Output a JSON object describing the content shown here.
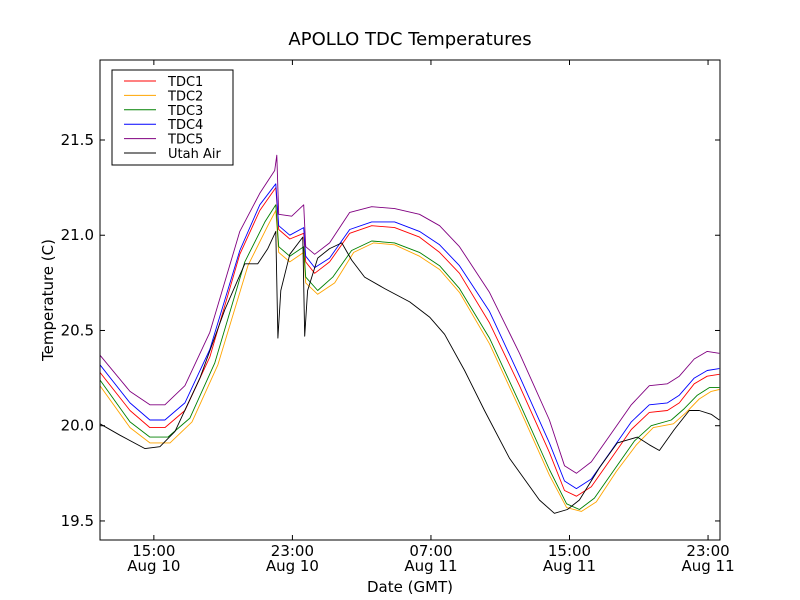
{
  "chart_data": {
    "type": "line",
    "title": "APOLLO TDC Temperatures",
    "xlabel": "Date (GMT)",
    "ylabel": "Temperature (C)",
    "x_units": "hours since 12:00 Aug 10 (GMT)",
    "xlim": [
      -0.11,
      35.69
    ],
    "ylim": [
      19.4,
      21.92
    ],
    "grid": false,
    "legend_position": "top-left",
    "x_ticks": [
      {
        "value": 3,
        "label_time": "15:00",
        "label_date": "Aug 10"
      },
      {
        "value": 11,
        "label_time": "23:00",
        "label_date": "Aug 10"
      },
      {
        "value": 19,
        "label_time": "07:00",
        "label_date": "Aug 11"
      },
      {
        "value": 27,
        "label_time": "15:00",
        "label_date": "Aug 11"
      },
      {
        "value": 35,
        "label_time": "23:00",
        "label_date": "Aug 11"
      }
    ],
    "y_ticks": [
      {
        "value": 19.5,
        "label": "19.5"
      },
      {
        "value": 20.0,
        "label": "20.0"
      },
      {
        "value": 20.5,
        "label": "20.5"
      },
      {
        "value": 21.0,
        "label": "21.0"
      },
      {
        "value": 21.5,
        "label": "21.5"
      }
    ],
    "series": [
      {
        "name": "TDC1",
        "color": "#ff0000",
        "x": [
          -0.11,
          1.62,
          2.77,
          3.64,
          4.79,
          6.23,
          7.96,
          9.12,
          10.04,
          10.21,
          10.85,
          11.65,
          11.77,
          12.29,
          13.15,
          14.31,
          15.58,
          16.9,
          18.34,
          19.5,
          20.65,
          22.38,
          24.11,
          25.84,
          26.71,
          27.4,
          28.26,
          29.42,
          30.57,
          31.61,
          32.65,
          33.34,
          34.2,
          34.95,
          35.65
        ],
        "values": [
          20.28,
          20.08,
          19.99,
          19.99,
          20.08,
          20.36,
          20.9,
          21.13,
          21.25,
          21.03,
          20.98,
          21.01,
          20.86,
          20.8,
          20.86,
          21.01,
          21.05,
          21.04,
          20.99,
          20.91,
          20.8,
          20.54,
          20.21,
          19.86,
          19.66,
          19.63,
          19.68,
          19.83,
          19.98,
          20.07,
          20.08,
          20.12,
          20.22,
          20.26,
          20.27
        ]
      },
      {
        "name": "TDC2",
        "color": "#ffa500",
        "x": [
          -0.11,
          1.62,
          2.77,
          3.93,
          5.2,
          6.7,
          8.43,
          9.58,
          10.04,
          10.21,
          10.85,
          11.65,
          11.77,
          12.46,
          13.44,
          14.54,
          15.69,
          16.9,
          18.34,
          19.5,
          20.65,
          22.38,
          24.11,
          25.84,
          26.83,
          27.69,
          28.55,
          29.71,
          30.86,
          31.84,
          33.0,
          33.74,
          34.49,
          35.18,
          35.65
        ],
        "values": [
          20.21,
          19.99,
          19.91,
          19.91,
          20.02,
          20.32,
          20.84,
          21.05,
          21.13,
          20.91,
          20.86,
          20.91,
          20.75,
          20.69,
          20.75,
          20.91,
          20.96,
          20.95,
          20.89,
          20.82,
          20.7,
          20.43,
          20.09,
          19.74,
          19.57,
          19.55,
          19.6,
          19.76,
          19.9,
          19.99,
          20.01,
          20.07,
          20.14,
          20.18,
          20.19
        ]
      },
      {
        "name": "TDC3",
        "color": "#008000",
        "x": [
          -0.11,
          1.62,
          2.77,
          3.81,
          5.08,
          6.52,
          8.25,
          9.41,
          10.04,
          10.21,
          10.85,
          11.65,
          11.77,
          12.46,
          13.33,
          14.42,
          15.58,
          16.9,
          18.34,
          19.5,
          20.65,
          22.38,
          24.11,
          25.84,
          26.83,
          27.57,
          28.44,
          29.59,
          30.75,
          31.72,
          32.88,
          33.63,
          34.38,
          35.07,
          35.65
        ],
        "values": [
          20.24,
          20.02,
          19.94,
          19.94,
          20.04,
          20.33,
          20.86,
          21.07,
          21.16,
          20.94,
          20.89,
          20.94,
          20.78,
          20.71,
          20.78,
          20.92,
          20.97,
          20.96,
          20.91,
          20.84,
          20.72,
          20.46,
          20.12,
          19.77,
          19.59,
          19.56,
          19.62,
          19.77,
          19.92,
          20.0,
          20.03,
          20.09,
          20.16,
          20.2,
          20.2
        ]
      },
      {
        "name": "TDC4",
        "color": "#0000ff",
        "x": [
          -0.11,
          1.62,
          2.77,
          3.64,
          4.79,
          6.23,
          7.96,
          9.12,
          10.04,
          10.21,
          10.85,
          11.65,
          11.77,
          12.29,
          13.15,
          14.31,
          15.58,
          16.9,
          18.34,
          19.5,
          20.65,
          22.38,
          24.11,
          25.84,
          26.71,
          27.4,
          28.26,
          29.42,
          30.57,
          31.61,
          32.65,
          33.34,
          34.2,
          34.95,
          35.65
        ],
        "values": [
          20.32,
          20.12,
          20.03,
          20.03,
          20.12,
          20.4,
          20.92,
          21.16,
          21.27,
          21.05,
          21.0,
          21.04,
          20.89,
          20.83,
          20.88,
          21.03,
          21.07,
          21.07,
          21.02,
          20.95,
          20.84,
          20.6,
          20.26,
          19.91,
          19.71,
          19.67,
          19.72,
          19.87,
          20.02,
          20.11,
          20.12,
          20.16,
          20.25,
          20.29,
          20.3
        ]
      },
      {
        "name": "TDC5",
        "color": "#800080",
        "x": [
          -0.11,
          1.62,
          2.77,
          3.64,
          4.79,
          6.23,
          7.96,
          9.12,
          9.98,
          10.1,
          10.21,
          10.96,
          11.65,
          11.77,
          12.29,
          13.15,
          14.31,
          15.58,
          16.9,
          18.34,
          19.5,
          20.65,
          22.38,
          24.11,
          25.84,
          26.71,
          27.4,
          28.26,
          29.42,
          30.57,
          31.61,
          32.65,
          33.34,
          34.2,
          34.95,
          35.65
        ],
        "values": [
          20.37,
          20.18,
          20.11,
          20.11,
          20.21,
          20.49,
          21.02,
          21.22,
          21.34,
          21.42,
          21.11,
          21.1,
          21.16,
          20.94,
          20.9,
          20.96,
          21.12,
          21.15,
          21.14,
          21.11,
          21.05,
          20.94,
          20.7,
          20.38,
          20.03,
          19.79,
          19.75,
          19.81,
          19.96,
          20.11,
          20.21,
          20.22,
          20.26,
          20.35,
          20.39,
          20.38
        ]
      },
      {
        "name": "Utah Air",
        "color": "#000000",
        "x": [
          -0.11,
          1.04,
          2.49,
          3.35,
          4.22,
          5.66,
          7.1,
          8.25,
          9.0,
          9.58,
          10.04,
          10.16,
          10.33,
          10.85,
          11.6,
          11.71,
          11.88,
          12.46,
          13.15,
          13.85,
          14.42,
          15.17,
          16.33,
          17.77,
          18.92,
          19.79,
          20.94,
          22.09,
          23.53,
          25.26,
          26.13,
          26.88,
          27.57,
          28.73,
          29.76,
          30.92,
          31.61,
          32.19,
          33.05,
          33.92,
          34.49,
          35.18,
          35.65
        ],
        "values": [
          20.01,
          19.95,
          19.88,
          19.89,
          19.97,
          20.25,
          20.61,
          20.85,
          20.85,
          20.93,
          21.02,
          20.46,
          20.71,
          20.9,
          20.99,
          20.47,
          20.71,
          20.88,
          20.93,
          20.96,
          20.87,
          20.78,
          20.72,
          20.65,
          20.57,
          20.48,
          20.29,
          20.08,
          19.83,
          19.61,
          19.54,
          19.56,
          19.61,
          19.78,
          19.91,
          19.94,
          19.9,
          19.87,
          19.98,
          20.08,
          20.08,
          20.06,
          20.03
        ]
      }
    ]
  }
}
